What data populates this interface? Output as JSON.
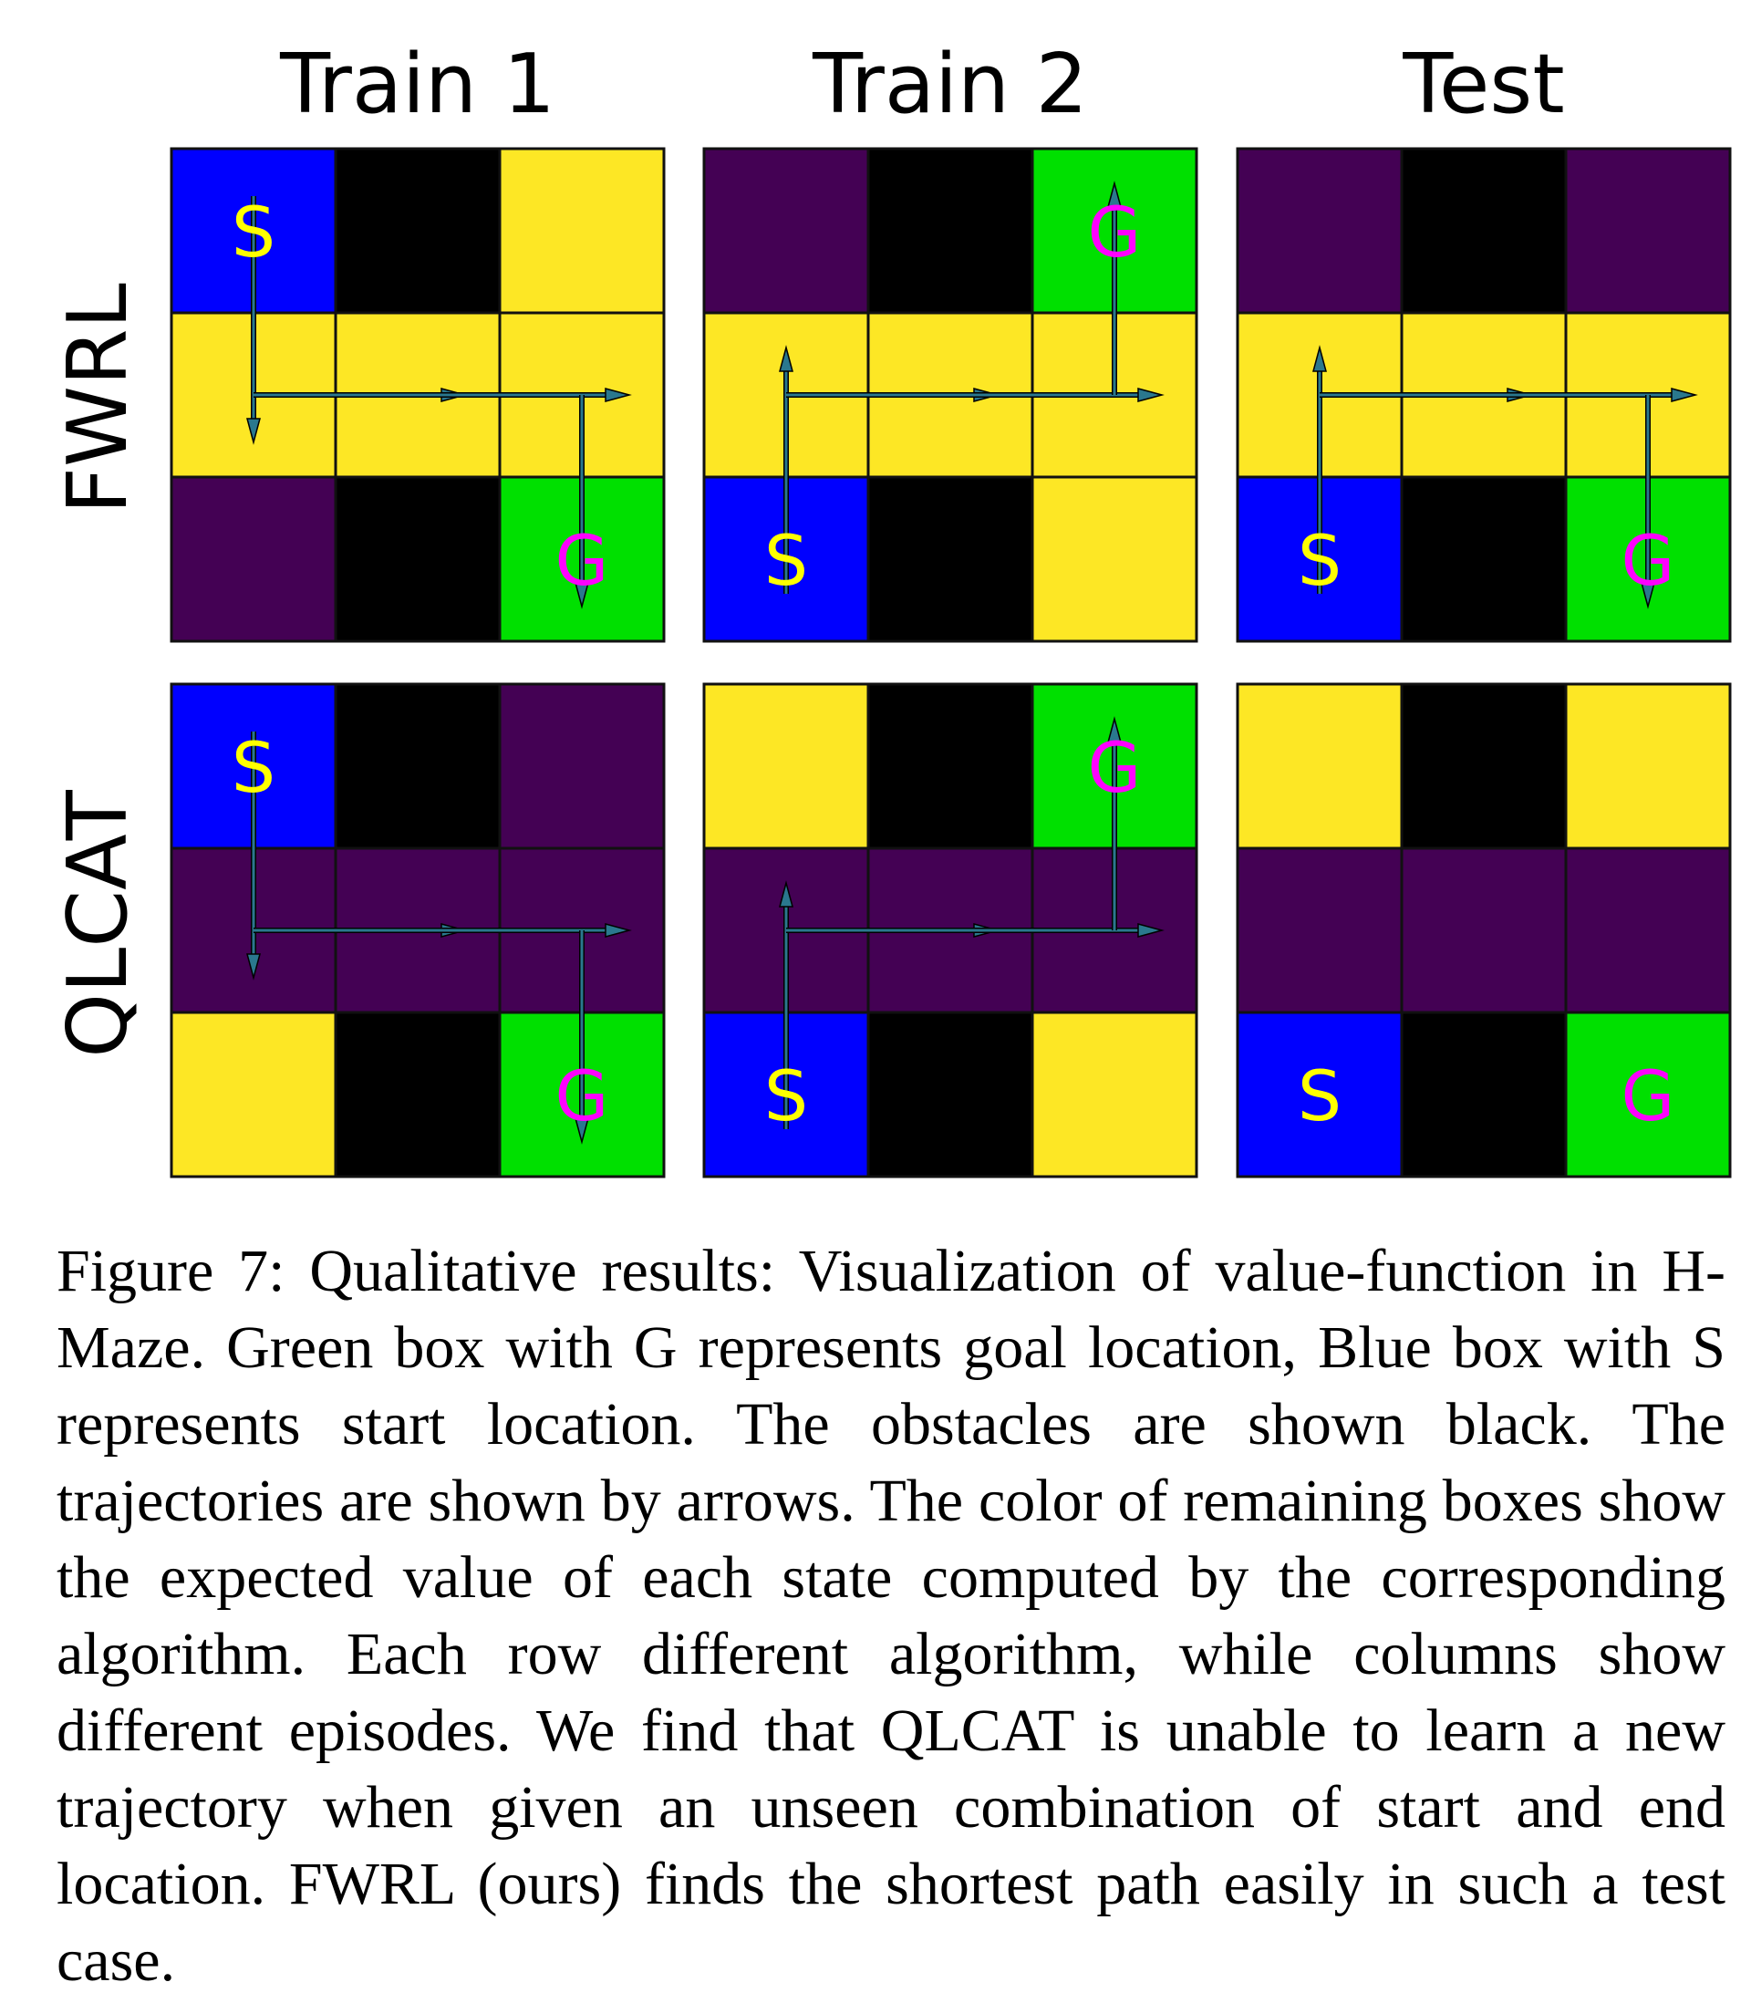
{
  "figure": {
    "columns": [
      "Train 1",
      "Train 2",
      "Test"
    ],
    "rows": [
      "FWRL",
      "QLCAT"
    ],
    "caption": "Figure 7: Qualitative results: Visualization of value-function in H-Maze. Green box with G represents goal location, Blue box with S represents start location. The obstacles are shown black. The trajectories are shown by arrows. The color of remaining boxes show the expected value of each state computed by the corresponding algorithm. Each row different algorithm, while columns show different episodes. We find that QLCAT is unable to learn a new trajectory when given an unseen combination of start and end location. FWRL (ours) finds the shortest path easily in such a test case."
  },
  "colors": {
    "start": "#0000ff",
    "goal": "#00e000",
    "obstacle": "#000000",
    "high_value": "#fde725",
    "low_value": "#440154",
    "start_label": "#ffff00",
    "goal_label": "#ff00ff",
    "arrow": "#2a788e"
  },
  "chart_data": {
    "type": "heatmap",
    "grid_size": [
      3,
      3
    ],
    "cell_codes": {
      "S": "start",
      "G": "goal",
      "X": "obstacle",
      "H": "high value",
      "L": "low value"
    },
    "labels": {
      "start": "S",
      "goal": "G"
    },
    "panels": [
      {
        "row": "FWRL",
        "column": "Train 1",
        "cells": [
          [
            "S",
            "X",
            "H"
          ],
          [
            "H",
            "H",
            "H"
          ],
          [
            "L",
            "X",
            "G"
          ]
        ],
        "path": [
          [
            0,
            0
          ],
          [
            1,
            0
          ],
          [
            1,
            1
          ],
          [
            1,
            2
          ],
          [
            2,
            2
          ]
        ]
      },
      {
        "row": "FWRL",
        "column": "Train 2",
        "cells": [
          [
            "L",
            "X",
            "G"
          ],
          [
            "H",
            "H",
            "H"
          ],
          [
            "S",
            "X",
            "H"
          ]
        ],
        "path": [
          [
            2,
            0
          ],
          [
            1,
            0
          ],
          [
            1,
            1
          ],
          [
            1,
            2
          ],
          [
            0,
            2
          ]
        ]
      },
      {
        "row": "FWRL",
        "column": "Test",
        "cells": [
          [
            "L",
            "X",
            "L"
          ],
          [
            "H",
            "H",
            "H"
          ],
          [
            "S",
            "X",
            "G"
          ]
        ],
        "path": [
          [
            2,
            0
          ],
          [
            1,
            0
          ],
          [
            1,
            1
          ],
          [
            1,
            2
          ],
          [
            2,
            2
          ]
        ]
      },
      {
        "row": "QLCAT",
        "column": "Train 1",
        "cells": [
          [
            "S",
            "X",
            "L"
          ],
          [
            "L",
            "L",
            "L"
          ],
          [
            "H",
            "X",
            "G"
          ]
        ],
        "path": [
          [
            0,
            0
          ],
          [
            1,
            0
          ],
          [
            1,
            1
          ],
          [
            1,
            2
          ],
          [
            2,
            2
          ]
        ]
      },
      {
        "row": "QLCAT",
        "column": "Train 2",
        "cells": [
          [
            "H",
            "X",
            "G"
          ],
          [
            "L",
            "L",
            "L"
          ],
          [
            "S",
            "X",
            "H"
          ]
        ],
        "path": [
          [
            2,
            0
          ],
          [
            1,
            0
          ],
          [
            1,
            1
          ],
          [
            1,
            2
          ],
          [
            0,
            2
          ]
        ]
      },
      {
        "row": "QLCAT",
        "column": "Test",
        "cells": [
          [
            "H",
            "X",
            "H"
          ],
          [
            "L",
            "L",
            "L"
          ],
          [
            "S",
            "X",
            "G"
          ]
        ],
        "path": []
      }
    ]
  }
}
